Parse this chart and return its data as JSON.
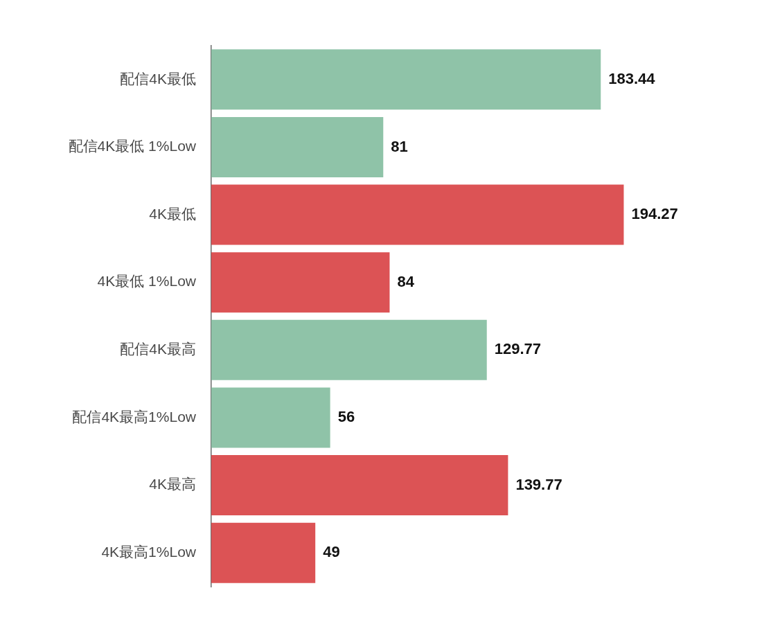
{
  "chart_data": {
    "type": "bar",
    "orientation": "horizontal",
    "categories": [
      "配信4K最低",
      "配信4K最低 1%Low",
      "4K最低",
      "4K最低 1%Low",
      "配信4K最高",
      "配信4K最高1%Low",
      "4K最高",
      "4K最高1%Low"
    ],
    "values": [
      183.44,
      81,
      194.27,
      84,
      129.77,
      56,
      139.77,
      49
    ],
    "colors": [
      "#8fc3a8",
      "#8fc3a8",
      "#dc5355",
      "#dc5355",
      "#8fc3a8",
      "#8fc3a8",
      "#dc5355",
      "#dc5355"
    ],
    "data_labels": true
  }
}
